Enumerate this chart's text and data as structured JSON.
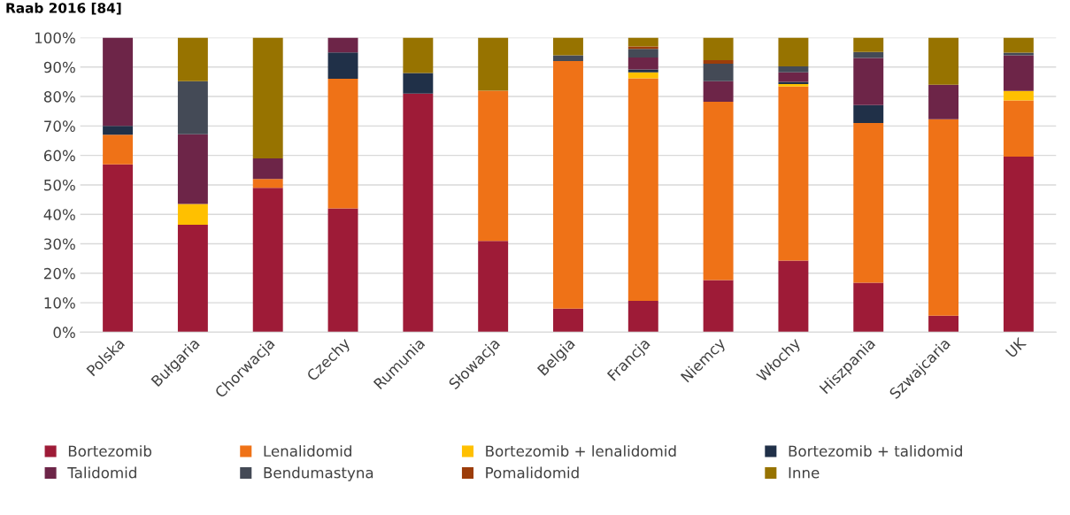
{
  "chart_data": {
    "type": "bar",
    "stacked": true,
    "title": "Raab 2016 [84]",
    "categories": [
      "Polska",
      "Bułgaria",
      "Chorwacja",
      "Czechy",
      "Rumunia",
      "Słowacja",
      "Belgia",
      "Francja",
      "Niemcy",
      "Włochy",
      "Hiszpania",
      "Szwajcaria",
      "UK"
    ],
    "series": [
      {
        "name": "Bortezomib",
        "color": "#9e1b37",
        "values": [
          57,
          36.5,
          49,
          42,
          81,
          31,
          8,
          10.6,
          17.7,
          24.3,
          16.8,
          5.6,
          59.6
        ]
      },
      {
        "name": "Lenalidomid",
        "color": "#ef7217",
        "values": [
          10,
          0,
          3,
          44,
          0,
          51,
          84,
          75.6,
          60.5,
          59.1,
          54.2,
          66.7,
          19.1
        ]
      },
      {
        "name": "Bortezomib + lenalidomid",
        "color": "#ffc000",
        "values": [
          0,
          7,
          0,
          0,
          0,
          0,
          0,
          2,
          0,
          0.8,
          0,
          0,
          3.2
        ]
      },
      {
        "name": "Bortezomib + talidomid",
        "color": "#203048",
        "values": [
          3,
          0,
          0,
          9,
          7,
          0,
          0,
          1,
          0,
          0.8,
          6.1,
          0,
          0
        ]
      },
      {
        "name": "Talidomid",
        "color": "#6d2548",
        "values": [
          30,
          23.7,
          7,
          5,
          0,
          0,
          0,
          4,
          7,
          3.2,
          16,
          11.7,
          12.1
        ]
      },
      {
        "name": "Bendumastyna",
        "color": "#444a56",
        "values": [
          0,
          18,
          0,
          0,
          0,
          0,
          2,
          3,
          5.9,
          2,
          2,
          0,
          0.9
        ]
      },
      {
        "name": "Pomalidomid",
        "color": "#9c3d0a",
        "values": [
          0,
          0,
          0,
          0,
          0,
          0,
          0,
          0.8,
          1.2,
          0,
          0,
          0,
          0
        ]
      },
      {
        "name": "Inne",
        "color": "#977300",
        "values": [
          0,
          14.8,
          41,
          0,
          12,
          18,
          6,
          3,
          7.7,
          9.8,
          4.9,
          16,
          5.1
        ]
      }
    ],
    "ylim": [
      0,
      100
    ],
    "yticks": [
      {
        "value": 0,
        "label": "0%"
      },
      {
        "value": 10,
        "label": "10%"
      },
      {
        "value": 20,
        "label": "20%"
      },
      {
        "value": 30,
        "label": "30%"
      },
      {
        "value": 40,
        "label": "40%"
      },
      {
        "value": 50,
        "label": "50%"
      },
      {
        "value": 60,
        "label": "60%"
      },
      {
        "value": 70,
        "label": "70%"
      },
      {
        "value": 80,
        "label": "80%"
      },
      {
        "value": 90,
        "label": "90%"
      },
      {
        "value": 100,
        "label": "100%"
      }
    ],
    "grid": "y",
    "legend": "bottom"
  }
}
